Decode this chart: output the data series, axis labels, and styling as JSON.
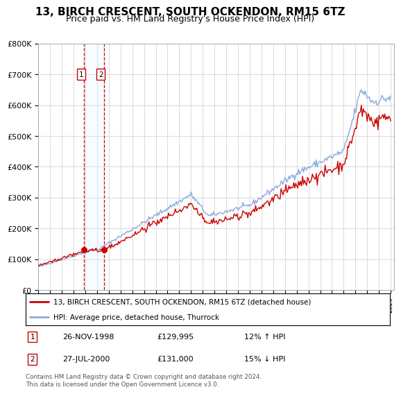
{
  "title": "13, BIRCH CRESCENT, SOUTH OCKENDON, RM15 6TZ",
  "subtitle": "Price paid vs. HM Land Registry's House Price Index (HPI)",
  "ylim": [
    0,
    800000
  ],
  "yticks": [
    0,
    100000,
    200000,
    300000,
    400000,
    500000,
    600000,
    700000,
    800000
  ],
  "ytick_labels": [
    "£0",
    "£100K",
    "£200K",
    "£300K",
    "£400K",
    "£500K",
    "£600K",
    "£700K",
    "£800K"
  ],
  "xlim_start": 1995,
  "xlim_end": 2025.3,
  "transactions": [
    {
      "date_num": 1998.9,
      "price": 129995,
      "label": "1"
    },
    {
      "date_num": 2000.57,
      "price": 131000,
      "label": "2"
    }
  ],
  "transaction_info": [
    {
      "num": "1",
      "date": "26-NOV-1998",
      "price": "£129,995",
      "hpi": "12% ↑ HPI"
    },
    {
      "num": "2",
      "date": "27-JUL-2000",
      "price": "£131,000",
      "hpi": "15% ↓ HPI"
    }
  ],
  "legend_property": "13, BIRCH CRESCENT, SOUTH OCKENDON, RM15 6TZ (detached house)",
  "legend_hpi": "HPI: Average price, detached house, Thurrock",
  "footer": "Contains HM Land Registry data © Crown copyright and database right 2024.\nThis data is licensed under the Open Government Licence v3.0.",
  "property_color": "#cc0000",
  "hpi_color": "#88aadd",
  "shade_color": "#ddeeff",
  "vline_color": "#cc0000",
  "background_color": "#ffffff",
  "grid_color": "#cccccc",
  "title_fontsize": 11,
  "subtitle_fontsize": 9
}
